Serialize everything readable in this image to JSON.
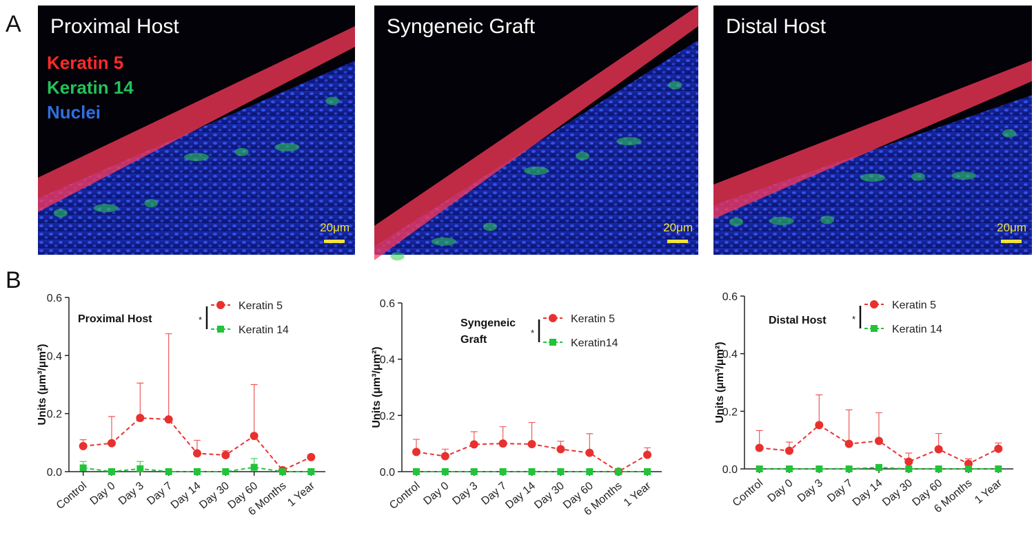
{
  "panel_a": {
    "label": "A",
    "images": [
      {
        "title": "Proximal Host",
        "scale_bar": "20μm"
      },
      {
        "title": "Syngeneic Graft",
        "scale_bar": "20μm"
      },
      {
        "title": "Distal Host",
        "scale_bar": "20μm"
      }
    ],
    "stain_legend": [
      {
        "name": "Keratin 5",
        "color": "#ff2a2a"
      },
      {
        "name": "Keratin 14",
        "color": "#22c35a"
      },
      {
        "name": "Nuclei",
        "color": "#2f6fe0"
      }
    ]
  },
  "panel_b": {
    "label": "B"
  },
  "chart_data": [
    {
      "type": "line",
      "title": "Proximal Host",
      "y_label": "Units (μm³/μm²)",
      "significance": "*",
      "categories": [
        "Control",
        "Day 0",
        "Day 3",
        "Day 7",
        "Day 14",
        "Day 30",
        "Day 60",
        "6 Months",
        "1 Year"
      ],
      "ylim": [
        0,
        0.6
      ],
      "yticks": [
        {
          "value": 0,
          "label": "0.0"
        },
        0.2,
        0.4,
        0.6
      ],
      "series": [
        {
          "name": "Keratin 5",
          "color": "#e8312f",
          "marker": "circle",
          "values": [
            0.088,
            0.098,
            0.185,
            0.18,
            0.063,
            0.057,
            0.123,
            0.005,
            0.05
          ],
          "errors": [
            0.022,
            0.092,
            0.12,
            0.295,
            0.045,
            0.015,
            0.177,
            0,
            0.008
          ]
        },
        {
          "name": "Keratin 14",
          "color": "#22c33a",
          "marker": "square",
          "values": [
            0.013,
            0,
            0.01,
            0,
            0,
            0,
            0.015,
            0,
            0
          ],
          "errors": [
            0.022,
            0,
            0.025,
            0,
            0,
            0,
            0.03,
            0,
            0
          ]
        }
      ]
    },
    {
      "type": "line",
      "title": "Syngeneic Graft",
      "y_label": "Units (μm³/μm²)",
      "significance": "*",
      "categories": [
        "Control",
        "Day 0",
        "Day 3",
        "Day 7",
        "Day 14",
        "Day 30",
        "Day 60",
        "6 Months",
        "1 Year"
      ],
      "ylim": [
        0,
        0.6
      ],
      "yticks": [
        {
          "value": 0,
          "label": "0.0"
        },
        0.2,
        0.4,
        0.6
      ],
      "series": [
        {
          "name": "Keratin 5",
          "color": "#e8312f",
          "marker": "circle",
          "values": [
            0.07,
            0.055,
            0.097,
            0.1,
            0.098,
            0.08,
            0.067,
            0,
            0.06
          ],
          "errors": [
            0.045,
            0.025,
            0.045,
            0.06,
            0.077,
            0.028,
            0.068,
            0,
            0.025
          ]
        },
        {
          "name": "Keratin14",
          "color": "#22c33a",
          "marker": "square",
          "values": [
            0,
            0,
            0,
            0,
            0,
            0,
            0,
            0,
            0
          ],
          "errors": [
            0,
            0,
            0,
            0,
            0,
            0,
            0,
            0,
            0
          ]
        }
      ]
    },
    {
      "type": "line",
      "title": "Distal Host",
      "y_label": "Units (μm³/μm²)",
      "significance": "*",
      "categories": [
        "Control",
        "Day 0",
        "Day 3",
        "Day 7",
        "Day 14",
        "Day 30",
        "Day 60",
        "6 Months",
        "1 Year"
      ],
      "ylim": [
        0,
        0.6
      ],
      "yticks": [
        {
          "value": 0,
          "label": "0.0"
        },
        0.2,
        0.4,
        0.6
      ],
      "series": [
        {
          "name": "Keratin 5",
          "color": "#e8312f",
          "marker": "circle",
          "values": [
            0.073,
            0.063,
            0.152,
            0.087,
            0.097,
            0.025,
            0.068,
            0.018,
            0.07
          ],
          "errors": [
            0.06,
            0.03,
            0.105,
            0.118,
            0.098,
            0.03,
            0.055,
            0.017,
            0.02
          ]
        },
        {
          "name": "Keratin 14",
          "color": "#22c33a",
          "marker": "square",
          "values": [
            0,
            0,
            0,
            0,
            0.005,
            0,
            0,
            0,
            0
          ],
          "errors": [
            0,
            0,
            0,
            0,
            0,
            0,
            0,
            0,
            0
          ]
        }
      ]
    }
  ]
}
